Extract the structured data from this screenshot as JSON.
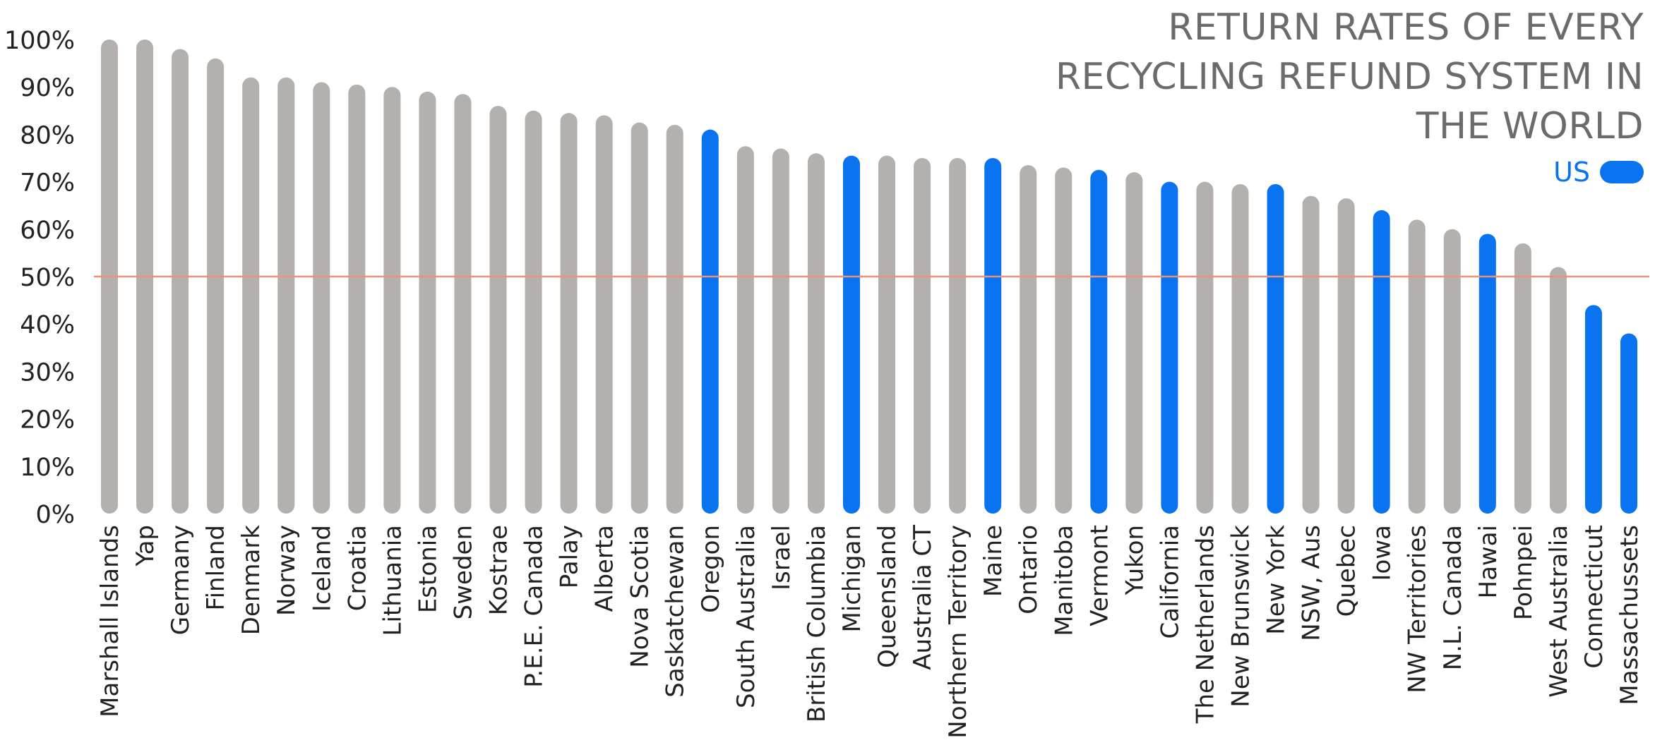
{
  "chart_data": {
    "type": "bar",
    "title_lines": [
      "RETURN RATES OF EVERY",
      "RECYCLING REFUND SYSTEM IN",
      "THE WORLD"
    ],
    "xlabel": "",
    "ylabel": "",
    "ylim": [
      0,
      100
    ],
    "y_ticks": [
      "0%",
      "10%",
      "20%",
      "30%",
      "40%",
      "50%",
      "60%",
      "70%",
      "80%",
      "90%",
      "100%"
    ],
    "y_tick_values": [
      0,
      10,
      20,
      30,
      40,
      50,
      60,
      70,
      80,
      90,
      100
    ],
    "reference_line": 50,
    "legend": {
      "label": "US",
      "position": "top-right"
    },
    "categories": [
      "Marshall Islands",
      "Yap",
      "Germany",
      "Finland",
      "Denmark",
      "Norway",
      "Iceland",
      "Croatia",
      "Lithuania",
      "Estonia",
      "Sweden",
      "Kostrae",
      "P.E.E. Canada",
      "Palay",
      "Alberta",
      "Nova Scotia",
      "Saskatchewan",
      "Oregon",
      "South Australia",
      "Israel",
      "British Columbia",
      "Michigan",
      "Queensland",
      "Australia CT",
      "Northern Territory",
      "Maine",
      "Ontario",
      "Manitoba",
      "Vermont",
      "Yukon",
      "California",
      "The Netherlands",
      "New Brunswick",
      "New York",
      "NSW, Aus",
      "Quebec",
      "Iowa",
      "NW Territories",
      "N.L. Canada",
      "Hawai",
      "Pohnpei",
      "West Australia",
      "Connecticut",
      "Massachussets"
    ],
    "values": [
      100,
      100,
      98,
      96,
      92,
      92,
      91,
      90.5,
      90,
      89,
      88.5,
      86,
      85,
      84.5,
      84,
      82.5,
      82,
      81,
      77.5,
      77,
      76,
      75.5,
      75.5,
      75,
      75,
      75,
      73.5,
      73,
      72.5,
      72,
      70,
      70,
      69.5,
      69.5,
      67,
      66.5,
      64,
      62,
      60,
      59,
      57,
      52,
      44,
      38
    ],
    "us": [
      false,
      false,
      false,
      false,
      false,
      false,
      false,
      false,
      false,
      false,
      false,
      false,
      false,
      false,
      false,
      false,
      false,
      true,
      false,
      false,
      false,
      true,
      false,
      false,
      false,
      true,
      false,
      false,
      true,
      false,
      true,
      false,
      false,
      true,
      false,
      false,
      true,
      false,
      false,
      true,
      false,
      false,
      true,
      true
    ],
    "colors": {
      "us": "#0a73f0",
      "other": "#b3b0ad",
      "reference": "#f0907a",
      "title": "#6b6b6b",
      "axis_text": "#222222"
    }
  }
}
